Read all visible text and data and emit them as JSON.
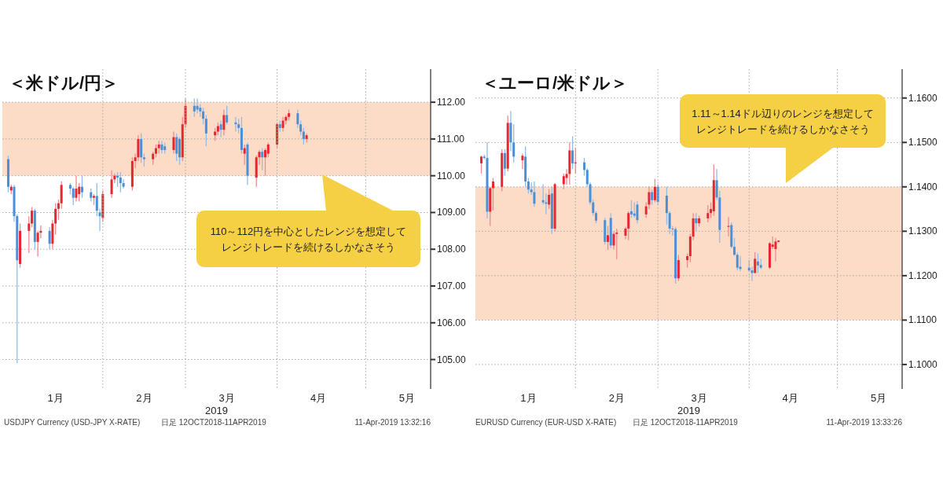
{
  "chart_data": [
    {
      "type": "candlestick",
      "title": "＜米ドル/円＞",
      "xlabel": "2019",
      "x": [
        "2018-12-31",
        "2019-01-01",
        "2019-01-02",
        "2019-01-03",
        "2019-01-04",
        "2019-01-07",
        "2019-01-08",
        "2019-01-09",
        "2019-01-10",
        "2019-01-11",
        "2019-01-14",
        "2019-01-15",
        "2019-01-16",
        "2019-01-17",
        "2019-01-18",
        "2019-01-21",
        "2019-01-22",
        "2019-01-23",
        "2019-01-24",
        "2019-01-25",
        "2019-01-28",
        "2019-01-29",
        "2019-01-30",
        "2019-01-31",
        "2019-02-01",
        "2019-02-04",
        "2019-02-05",
        "2019-02-06",
        "2019-02-07",
        "2019-02-08",
        "2019-02-11",
        "2019-02-12",
        "2019-02-13",
        "2019-02-14",
        "2019-02-15",
        "2019-02-18",
        "2019-02-19",
        "2019-02-20",
        "2019-02-21",
        "2019-02-22",
        "2019-02-25",
        "2019-02-26",
        "2019-02-27",
        "2019-02-28",
        "2019-03-01",
        "2019-03-04",
        "2019-03-05",
        "2019-03-06",
        "2019-03-07",
        "2019-03-08",
        "2019-03-11",
        "2019-03-12",
        "2019-03-13",
        "2019-03-14",
        "2019-03-15",
        "2019-03-18",
        "2019-03-19",
        "2019-03-20",
        "2019-03-21",
        "2019-03-22",
        "2019-03-25",
        "2019-03-26",
        "2019-03-27",
        "2019-03-28",
        "2019-03-29",
        "2019-04-01",
        "2019-04-02",
        "2019-04-03",
        "2019-04-04",
        "2019-04-05",
        "2019-04-08",
        "2019-04-09",
        "2019-04-10",
        "2019-04-11"
      ],
      "ohlc": [
        [
          110.45,
          110.55,
          109.55,
          109.7
        ],
        [
          109.6,
          109.75,
          109.5,
          109.7
        ],
        [
          109.7,
          109.75,
          108.75,
          108.9
        ],
        [
          108.9,
          108.95,
          104.9,
          107.7
        ],
        [
          107.6,
          108.7,
          107.5,
          108.5
        ],
        [
          108.5,
          108.9,
          107.9,
          108.7
        ],
        [
          108.7,
          109.15,
          108.6,
          109.05
        ],
        [
          109.05,
          109.1,
          108.0,
          108.2
        ],
        [
          108.2,
          108.5,
          107.8,
          108.45
        ],
        [
          108.45,
          108.65,
          108.3,
          108.5
        ],
        [
          108.5,
          108.6,
          108.0,
          108.15
        ],
        [
          108.15,
          108.8,
          108.0,
          108.7
        ],
        [
          108.7,
          109.25,
          108.4,
          109.1
        ],
        [
          109.1,
          109.35,
          108.8,
          109.25
        ],
        [
          109.25,
          109.85,
          109.1,
          109.75
        ],
        [
          109.75,
          109.8,
          109.5,
          109.65
        ],
        [
          109.65,
          109.7,
          109.2,
          109.4
        ],
        [
          109.4,
          110.0,
          109.3,
          109.65
        ],
        [
          109.5,
          109.8,
          109.3,
          109.7
        ],
        [
          109.7,
          110.0,
          109.4,
          109.55
        ],
        [
          109.55,
          109.65,
          109.3,
          109.4
        ],
        [
          109.4,
          109.5,
          109.2,
          109.45
        ],
        [
          109.45,
          109.8,
          108.9,
          109.05
        ],
        [
          109.0,
          109.1,
          108.5,
          108.9
        ],
        [
          108.85,
          109.6,
          108.75,
          109.5
        ],
        [
          109.5,
          110.15,
          109.4,
          109.9
        ],
        [
          109.9,
          110.05,
          109.8,
          110.0
        ],
        [
          110.0,
          110.1,
          109.7,
          109.95
        ],
        [
          109.95,
          110.1,
          109.55,
          109.8
        ],
        [
          109.8,
          109.9,
          109.65,
          109.7
        ],
        [
          109.7,
          110.5,
          109.6,
          110.4
        ],
        [
          110.4,
          110.6,
          110.2,
          110.5
        ],
        [
          110.5,
          111.1,
          110.4,
          111.0
        ],
        [
          111.0,
          111.15,
          110.35,
          110.5
        ],
        [
          110.5,
          110.6,
          110.25,
          110.45
        ],
        [
          110.45,
          110.65,
          110.3,
          110.6
        ],
        [
          110.6,
          110.85,
          110.5,
          110.75
        ],
        [
          110.75,
          110.95,
          110.6,
          110.85
        ],
        [
          110.85,
          110.95,
          110.6,
          110.7
        ],
        [
          110.8,
          110.9,
          110.6,
          110.7
        ],
        [
          110.7,
          111.2,
          110.6,
          111.05
        ],
        [
          111.05,
          111.15,
          110.4,
          110.6
        ],
        [
          111.0,
          111.05,
          110.3,
          110.5
        ],
        [
          110.5,
          111.6,
          110.4,
          111.4
        ],
        [
          111.4,
          112.1,
          111.3,
          111.9
        ],
        [
          111.9,
          112.1,
          111.6,
          111.75
        ],
        [
          111.9,
          112.1,
          111.7,
          111.8
        ],
        [
          111.85,
          111.95,
          111.6,
          111.75
        ],
        [
          111.75,
          111.85,
          111.4,
          111.55
        ],
        [
          111.55,
          111.65,
          110.8,
          111.15
        ],
        [
          111.1,
          111.3,
          110.95,
          111.2
        ],
        [
          111.2,
          111.45,
          111.1,
          111.35
        ],
        [
          111.4,
          111.5,
          111.05,
          111.25
        ],
        [
          111.25,
          111.8,
          111.1,
          111.65
        ],
        [
          111.65,
          111.9,
          111.4,
          111.45
        ],
        [
          111.45,
          111.6,
          111.2,
          111.4
        ],
        [
          111.4,
          111.55,
          111.15,
          111.3
        ],
        [
          111.3,
          111.6,
          110.6,
          110.7
        ],
        [
          110.6,
          110.85,
          110.3,
          110.75
        ],
        [
          110.85,
          110.9,
          109.75,
          110.0
        ],
        [
          109.95,
          110.55,
          109.7,
          110.5
        ],
        [
          110.5,
          110.7,
          110.3,
          110.65
        ],
        [
          110.65,
          110.75,
          110.15,
          110.5
        ],
        [
          110.5,
          110.75,
          110.0,
          110.7
        ],
        [
          110.6,
          110.9,
          110.5,
          110.85
        ],
        [
          110.85,
          111.45,
          110.75,
          111.4
        ],
        [
          111.4,
          111.5,
          111.2,
          111.3
        ],
        [
          111.3,
          111.6,
          111.2,
          111.5
        ],
        [
          111.5,
          111.65,
          111.4,
          111.6
        ],
        [
          111.6,
          111.8,
          111.5,
          111.7
        ],
        [
          111.7,
          111.8,
          111.3,
          111.4
        ],
        [
          111.4,
          111.5,
          111.1,
          111.2
        ],
        [
          111.2,
          111.3,
          110.85,
          111.0
        ],
        [
          111.0,
          111.15,
          110.9,
          111.1
        ]
      ],
      "xlim": [
        "2018-12-29",
        "2019-05-23"
      ],
      "xticks": [
        {
          "value": "2019-02-01",
          "label": null
        },
        {
          "value": "2019-03-01",
          "label": null
        },
        {
          "value": "2019-04-01",
          "label": null
        },
        {
          "value": "2019-05-01",
          "label": null
        },
        {
          "value": "2019-01-16",
          "label": "1月"
        },
        {
          "value": "2019-02-15",
          "label": "2月"
        },
        {
          "value": "2019-03-15",
          "label": "3月"
        },
        {
          "value": "2019-04-15",
          "label": "4月"
        },
        {
          "value": "2019-05-15",
          "label": "5月"
        }
      ],
      "ylim": [
        104.2,
        112.9
      ],
      "yticks": [
        {
          "value": 105,
          "label": "105.00"
        },
        {
          "value": 106,
          "label": "106.00"
        },
        {
          "value": 107,
          "label": "107.00"
        },
        {
          "value": 108,
          "label": "108.00"
        },
        {
          "value": 109,
          "label": "109.00"
        },
        {
          "value": 110,
          "label": "110.00"
        },
        {
          "value": 111,
          "label": "111.00"
        },
        {
          "value": 112,
          "label": "112.00"
        }
      ],
      "grid": true,
      "bands": [
        {
          "axis": "y",
          "from": 110,
          "to": 112,
          "color": "#fddcc7"
        }
      ],
      "annotations": [
        "110～112円を中心としたレンジを想定してレンジトレードを続けるしかなさそう",
        "USDJPY Currency (USD-JPY X-RATE)",
        "日足 12OCT2018-11APR2019",
        "11-Apr-2019 13:32:16"
      ]
    },
    {
      "type": "candlestick",
      "title": "＜ユーロ/米ドル＞",
      "xlabel": "2019",
      "x": [
        "2018-12-31",
        "2019-01-01",
        "2019-01-02",
        "2019-01-03",
        "2019-01-04",
        "2019-01-07",
        "2019-01-08",
        "2019-01-09",
        "2019-01-10",
        "2019-01-11",
        "2019-01-14",
        "2019-01-15",
        "2019-01-16",
        "2019-01-17",
        "2019-01-18",
        "2019-01-21",
        "2019-01-22",
        "2019-01-23",
        "2019-01-24",
        "2019-01-25",
        "2019-01-28",
        "2019-01-29",
        "2019-01-30",
        "2019-01-31",
        "2019-02-01",
        "2019-02-04",
        "2019-02-05",
        "2019-02-06",
        "2019-02-07",
        "2019-02-08",
        "2019-02-11",
        "2019-02-12",
        "2019-02-13",
        "2019-02-14",
        "2019-02-15",
        "2019-02-18",
        "2019-02-19",
        "2019-02-20",
        "2019-02-21",
        "2019-02-22",
        "2019-02-25",
        "2019-02-26",
        "2019-02-27",
        "2019-02-28",
        "2019-03-01",
        "2019-03-04",
        "2019-03-05",
        "2019-03-06",
        "2019-03-07",
        "2019-03-08",
        "2019-03-11",
        "2019-03-12",
        "2019-03-13",
        "2019-03-14",
        "2019-03-15",
        "2019-03-18",
        "2019-03-19",
        "2019-03-20",
        "2019-03-21",
        "2019-03-22",
        "2019-03-25",
        "2019-03-26",
        "2019-03-27",
        "2019-03-28",
        "2019-03-29",
        "2019-04-01",
        "2019-04-02",
        "2019-04-03",
        "2019-04-04",
        "2019-04-05",
        "2019-04-08",
        "2019-04-09",
        "2019-04-10",
        "2019-04-11"
      ],
      "ohlc": [
        [
          1.1453,
          1.147,
          1.143,
          1.1468
        ],
        [
          1.1468,
          1.1472,
          1.1462,
          1.1465
        ],
        [
          1.1465,
          1.15,
          1.1329,
          1.1344
        ],
        [
          1.1344,
          1.14,
          1.1312,
          1.1397
        ],
        [
          1.1397,
          1.142,
          1.1347,
          1.1412
        ],
        [
          1.14,
          1.1485,
          1.139,
          1.1476
        ],
        [
          1.1476,
          1.1485,
          1.1425,
          1.1441
        ],
        [
          1.1441,
          1.156,
          1.1435,
          1.1544
        ],
        [
          1.1544,
          1.1571,
          1.148,
          1.15
        ],
        [
          1.15,
          1.1541,
          1.1455,
          1.1468
        ],
        [
          1.146,
          1.1475,
          1.144,
          1.147
        ],
        [
          1.1468,
          1.1491,
          1.14,
          1.1412
        ],
        [
          1.1412,
          1.142,
          1.1385,
          1.1394
        ],
        [
          1.1394,
          1.141,
          1.1382,
          1.1388
        ],
        [
          1.1388,
          1.1412,
          1.1355,
          1.1362
        ],
        [
          1.137,
          1.1406,
          1.136,
          1.1365
        ],
        [
          1.1365,
          1.1385,
          1.1338,
          1.1362
        ],
        [
          1.136,
          1.1395,
          1.135,
          1.1382
        ],
        [
          1.1385,
          1.14,
          1.1294,
          1.1306
        ],
        [
          1.1306,
          1.1409,
          1.13,
          1.1406
        ],
        [
          1.1406,
          1.143,
          1.1395,
          1.1424
        ],
        [
          1.142,
          1.144,
          1.1405,
          1.1429
        ],
        [
          1.1429,
          1.15,
          1.1405,
          1.1482
        ],
        [
          1.1482,
          1.1514,
          1.144,
          1.1453
        ],
        [
          1.1453,
          1.1488,
          1.143,
          1.1455
        ],
        [
          1.1455,
          1.1465,
          1.1425,
          1.1438
        ],
        [
          1.1438,
          1.1441,
          1.14,
          1.1406
        ],
        [
          1.1406,
          1.141,
          1.136,
          1.1365
        ],
        [
          1.1365,
          1.1372,
          1.1335,
          1.1341
        ],
        [
          1.1341,
          1.1345,
          1.1318,
          1.1324
        ],
        [
          1.1325,
          1.133,
          1.127,
          1.1276
        ],
        [
          1.1276,
          1.1312,
          1.1258,
          1.1291
        ],
        [
          1.133,
          1.1341,
          1.1262,
          1.1268
        ],
        [
          1.1268,
          1.13,
          1.1259,
          1.1294
        ],
        [
          1.1294,
          1.1306,
          1.1237,
          1.1297
        ],
        [
          1.129,
          1.131,
          1.1282,
          1.1306
        ],
        [
          1.1306,
          1.1345,
          1.128,
          1.1341
        ],
        [
          1.1345,
          1.137,
          1.133,
          1.1338
        ],
        [
          1.134,
          1.1365,
          1.133,
          1.1335
        ],
        [
          1.136,
          1.1368,
          1.1318,
          1.1325
        ],
        [
          1.1338,
          1.1365,
          1.133,
          1.1356
        ],
        [
          1.136,
          1.14,
          1.135,
          1.1388
        ],
        [
          1.1388,
          1.1395,
          1.136,
          1.137
        ],
        [
          1.137,
          1.1418,
          1.1365,
          1.14
        ],
        [
          1.14,
          1.1406,
          1.136,
          1.1366
        ],
        [
          1.138,
          1.14,
          1.1315,
          1.1341
        ],
        [
          1.1341,
          1.1345,
          1.1294,
          1.1306
        ],
        [
          1.1306,
          1.1312,
          1.129,
          1.1305
        ],
        [
          1.1305,
          1.131,
          1.1182,
          1.1194
        ],
        [
          1.1194,
          1.1247,
          1.1188,
          1.1235
        ],
        [
          1.1235,
          1.125,
          1.1218,
          1.1244
        ],
        [
          1.1244,
          1.1294,
          1.123,
          1.1288
        ],
        [
          1.1288,
          1.1341,
          1.128,
          1.1329
        ],
        [
          1.1329,
          1.1341,
          1.13,
          1.1318
        ],
        [
          1.1318,
          1.1335,
          1.131,
          1.1329
        ],
        [
          1.1329,
          1.1359,
          1.132,
          1.1341
        ],
        [
          1.1341,
          1.1365,
          1.133,
          1.135
        ],
        [
          1.1345,
          1.145,
          1.1335,
          1.1415
        ],
        [
          1.1415,
          1.144,
          1.137,
          1.1376
        ],
        [
          1.1376,
          1.1391,
          1.1274,
          1.1303
        ],
        [
          1.131,
          1.1332,
          1.1288,
          1.1312
        ],
        [
          1.1314,
          1.132,
          1.1262,
          1.1265
        ],
        [
          1.1265,
          1.1285,
          1.1245,
          1.1247
        ],
        [
          1.1247,
          1.1252,
          1.1212,
          1.1218
        ],
        [
          1.122,
          1.1245,
          1.121,
          1.1215
        ],
        [
          1.1218,
          1.1235,
          1.1208,
          1.1212
        ],
        [
          1.1212,
          1.122,
          1.1188,
          1.1206
        ],
        [
          1.1206,
          1.1253,
          1.1206,
          1.1238
        ],
        [
          1.1232,
          1.125,
          1.1206,
          1.1223
        ],
        [
          1.1224,
          1.1238,
          1.1215,
          1.1218
        ],
        [
          1.1218,
          1.1276,
          1.1215,
          1.1273
        ],
        [
          1.1265,
          1.1288,
          1.126,
          1.127
        ],
        [
          1.126,
          1.1285,
          1.1232,
          1.1277
        ],
        [
          1.1276,
          1.128,
          1.1275,
          1.1279
        ]
      ],
      "xlim": [
        "2018-12-29",
        "2019-05-23"
      ],
      "xticks": [
        {
          "value": "2019-02-01",
          "label": null
        },
        {
          "value": "2019-03-01",
          "label": null
        },
        {
          "value": "2019-04-01",
          "label": null
        },
        {
          "value": "2019-05-01",
          "label": null
        },
        {
          "value": "2019-01-16",
          "label": "1月"
        },
        {
          "value": "2019-02-15",
          "label": "2月"
        },
        {
          "value": "2019-03-15",
          "label": "3月"
        },
        {
          "value": "2019-04-15",
          "label": "4月"
        },
        {
          "value": "2019-05-15",
          "label": "5月"
        }
      ],
      "ylim": [
        1.0945,
        1.1665
      ],
      "yticks": [
        {
          "value": 1.1,
          "label": "1.1000"
        },
        {
          "value": 1.11,
          "label": "1.1100"
        },
        {
          "value": 1.12,
          "label": "1.1200"
        },
        {
          "value": 1.13,
          "label": "1.1300"
        },
        {
          "value": 1.14,
          "label": "1.1400"
        },
        {
          "value": 1.15,
          "label": "1.1500"
        },
        {
          "value": 1.16,
          "label": "1.1600"
        }
      ],
      "grid": true,
      "bands": [
        {
          "axis": "y",
          "from": 1.11,
          "to": 1.14,
          "color": "#fddcc7"
        }
      ],
      "annotations": [
        "1.11～1.14ドル辺りのレンジを想定してレンジトレードを続けるしかなさそう",
        "EURUSD Currency (EUR-USD X-RATE)",
        "日足 12OCT2018-11APR2019",
        "11-Apr-2019 13:33:26"
      ]
    }
  ]
}
